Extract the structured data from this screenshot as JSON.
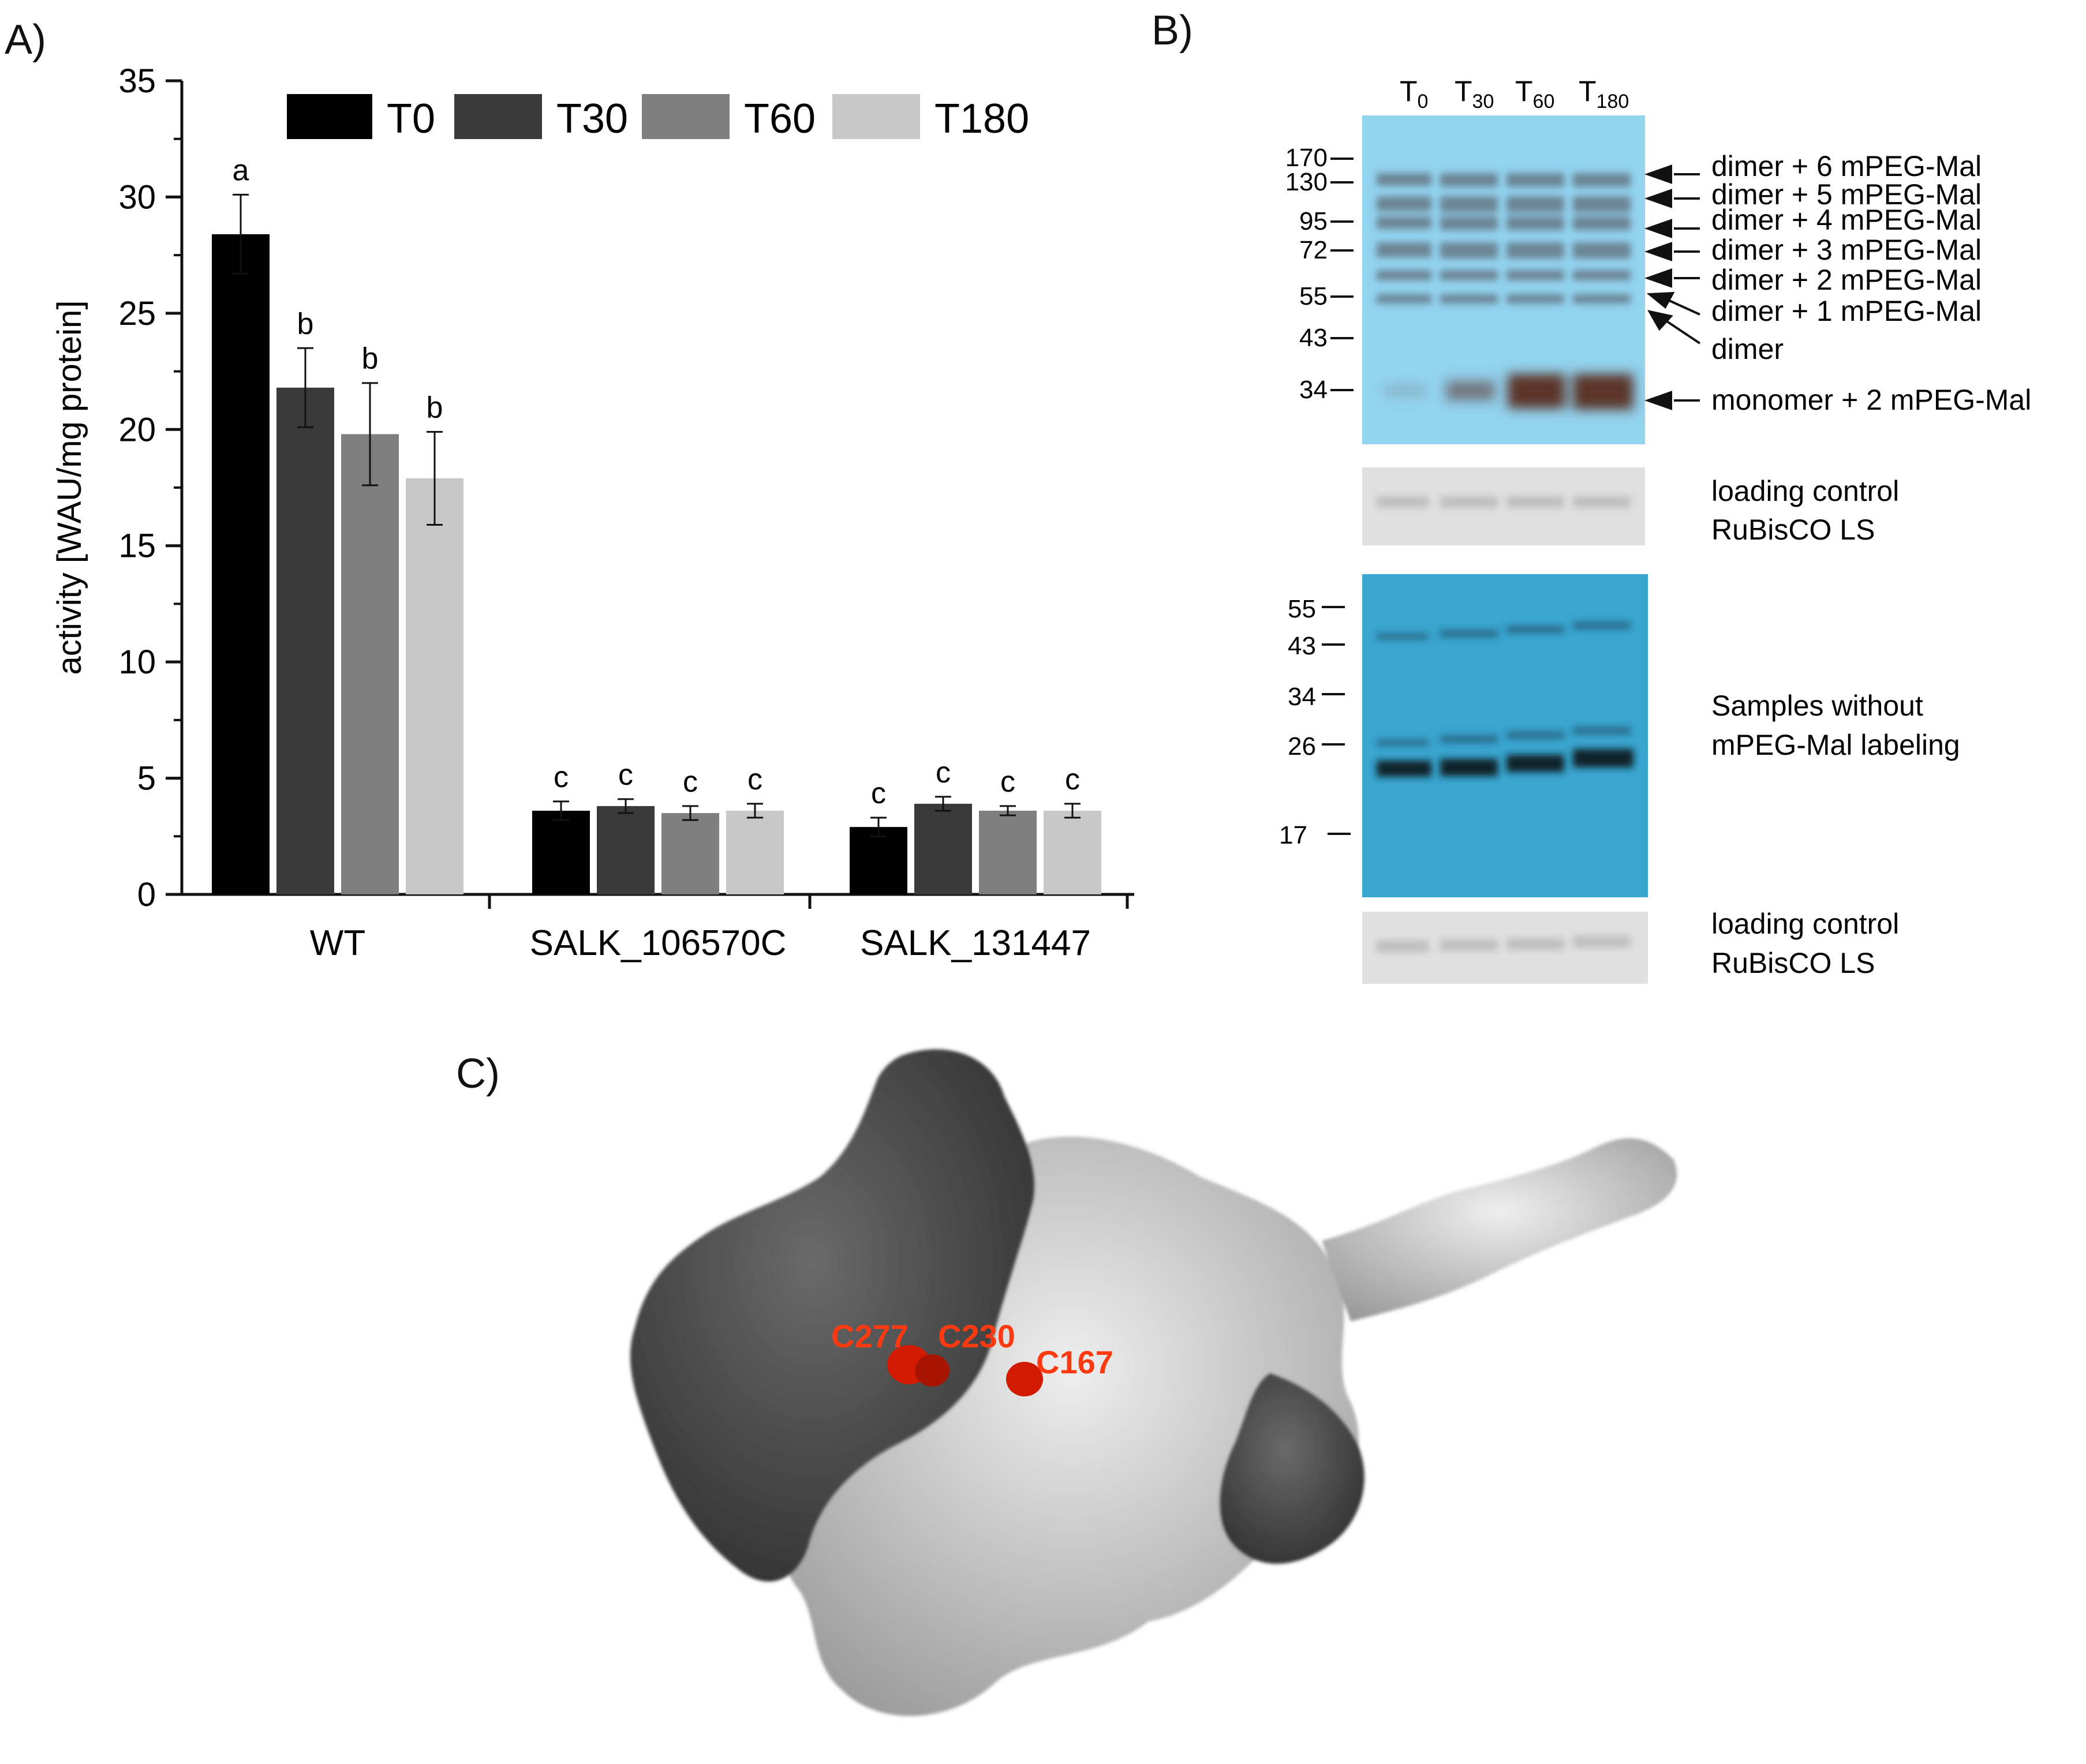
{
  "panels": {
    "a": "A)",
    "b": "B)",
    "c": "C)"
  },
  "chart_data": {
    "type": "bar",
    "ylabel": "activity [WAU/mg protein]",
    "ylim": [
      0,
      35
    ],
    "yticks": [
      "0",
      "5",
      "10",
      "15",
      "20",
      "25",
      "30",
      "35"
    ],
    "categories": [
      "WT",
      "SALK_106570C",
      "SALK_131447"
    ],
    "series": [
      {
        "name": "T0",
        "color": "#000000",
        "values": [
          28.4,
          3.6,
          2.9
        ],
        "errors": [
          1.7,
          0.4,
          0.4
        ],
        "letters": [
          "a",
          "c",
          "c"
        ]
      },
      {
        "name": "T30",
        "color": "#3a3a3a",
        "values": [
          21.8,
          3.8,
          3.9
        ],
        "errors": [
          1.7,
          0.3,
          0.3
        ],
        "letters": [
          "b",
          "c",
          "c"
        ]
      },
      {
        "name": "T60",
        "color": "#7f7f7f",
        "values": [
          19.8,
          3.5,
          3.6
        ],
        "errors": [
          2.2,
          0.3,
          0.2
        ],
        "letters": [
          "b",
          "c",
          "c"
        ]
      },
      {
        "name": "T180",
        "color": "#c8c8c8",
        "values": [
          17.9,
          3.6,
          3.6
        ],
        "errors": [
          2.0,
          0.3,
          0.3
        ],
        "letters": [
          "b",
          "c",
          "c"
        ]
      }
    ],
    "legend_position": "top"
  },
  "blot": {
    "lanes": [
      {
        "main": "T",
        "sub": "0"
      },
      {
        "main": "T",
        "sub": "30"
      },
      {
        "main": "T",
        "sub": "60"
      },
      {
        "main": "T",
        "sub": "180"
      }
    ],
    "top_markers": [
      "170",
      "130",
      "95",
      "72",
      "55",
      "43",
      "34"
    ],
    "band_labels": [
      "dimer + 6 mPEG-Mal",
      "dimer + 5 mPEG-Mal",
      "dimer + 4 mPEG-Mal",
      "dimer + 3 mPEG-Mal",
      "dimer + 2 mPEG-Mal",
      "dimer + 1 mPEG-Mal",
      "dimer",
      "monomer + 2 mPEG-Mal"
    ],
    "loading_control_1": [
      "loading control",
      "RuBisCO LS"
    ],
    "bottom_markers": [
      "55",
      "43",
      "34",
      "26",
      "17"
    ],
    "no_label_text": [
      "Samples without",
      "mPEG-Mal labeling"
    ],
    "loading_control_2": [
      "loading control",
      "RuBisCO LS"
    ],
    "colors": {
      "blot_top": "#92d3f0",
      "blot_bottom": "#3aa5cf",
      "control": "#e0e0e0"
    }
  },
  "structure": {
    "labels": [
      "C277",
      "C230",
      "C167"
    ],
    "colors": {
      "dark": "#4a4a4a",
      "light": "#d6d6d6",
      "residue": "#d21a00"
    }
  }
}
